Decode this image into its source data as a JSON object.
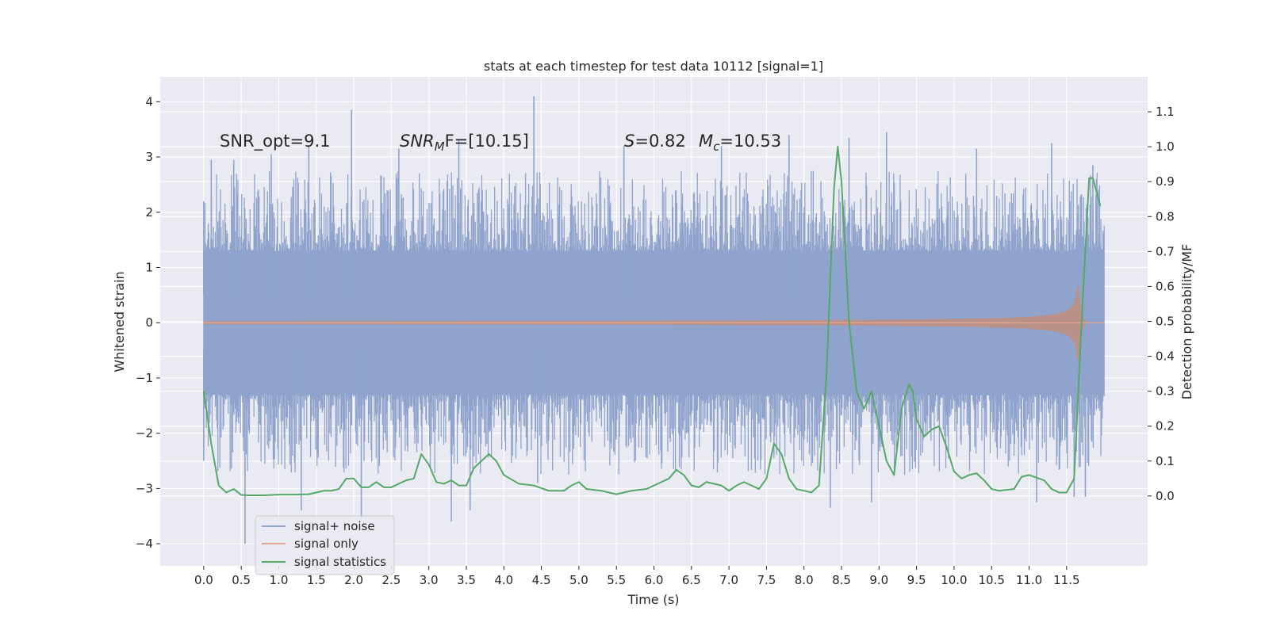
{
  "chart_data": {
    "type": "line",
    "title": "stats at each timestep for test data 10112 [signal=1]",
    "xlabel": "Time (s)",
    "ylabel_left": "Whitened strain",
    "ylabel_right": "Detection probability/MF",
    "xlim": [
      -0.58,
      12.58
    ],
    "ylim_left": [
      -4.4,
      4.45
    ],
    "ylim_right": [
      -0.2,
      1.2
    ],
    "x_ticks": [
      "0.0",
      "0.5",
      "1.0",
      "1.5",
      "2.0",
      "2.5",
      "3.0",
      "3.5",
      "4.0",
      "4.5",
      "5.0",
      "5.5",
      "6.0",
      "6.5",
      "7.0",
      "7.5",
      "8.0",
      "8.5",
      "9.0",
      "9.5",
      "10.0",
      "10.5",
      "11.0",
      "11.5"
    ],
    "y_ticks_left": [
      "4",
      "3",
      "2",
      "1",
      "0",
      "−1",
      "−2",
      "−3",
      "−4"
    ],
    "y_ticks_right": [
      "1.1",
      "1.0",
      "0.9",
      "0.8",
      "0.7",
      "0.6",
      "0.5",
      "0.4",
      "0.3",
      "0.2",
      "0.1",
      "0.0"
    ],
    "grid": true,
    "legend_position": "lower-left",
    "annotations": {
      "snr_opt": "SNR_opt=9.1",
      "snr_mf_sym": "SNR",
      "snr_mf_sub": "M",
      "snr_mf_rest": "F=[10.15]",
      "s_sym": "S",
      "s_rest": "=0.82",
      "mc_sym": "M",
      "mc_sub": "c",
      "mc_rest": "=10.53"
    },
    "series": [
      {
        "name": "signal+ noise",
        "axis": "left",
        "color": "#8fa3cd",
        "duration": 12.0,
        "typical_envelope": [
          -1.3,
          1.3
        ],
        "peaks_positive": [
          [
            0.0,
            2.2
          ],
          [
            0.1,
            2.95
          ],
          [
            0.4,
            2.95
          ],
          [
            0.9,
            3.05
          ],
          [
            1.4,
            3.2
          ],
          [
            1.97,
            3.85
          ],
          [
            2.6,
            3.15
          ],
          [
            3.4,
            3.3
          ],
          [
            4.4,
            4.1
          ],
          [
            5.6,
            3.2
          ],
          [
            6.9,
            3.2
          ],
          [
            7.8,
            3.4
          ],
          [
            8.6,
            3.35
          ],
          [
            9.1,
            3.45
          ],
          [
            10.3,
            3.15
          ],
          [
            11.3,
            3.25
          ],
          [
            11.85,
            2.85
          ]
        ],
        "peaks_negative": [
          [
            0.0,
            -2.5
          ],
          [
            0.55,
            -4.0
          ],
          [
            1.3,
            -3.4
          ],
          [
            2.1,
            -3.55
          ],
          [
            3.3,
            -3.6
          ],
          [
            3.55,
            -3.4
          ],
          [
            4.45,
            -2.9
          ],
          [
            8.35,
            -3.35
          ],
          [
            8.9,
            -3.25
          ],
          [
            11.1,
            -3.25
          ],
          [
            11.6,
            -3.15
          ],
          [
            11.75,
            -3.15
          ]
        ]
      },
      {
        "name": "signal only",
        "axis": "left",
        "color": "#dd8452",
        "duration": 12.0,
        "merger_time": 11.65,
        "peak_amplitude": 0.95
      },
      {
        "name": "signal statistics",
        "axis": "right",
        "color": "#55a868",
        "x": [
          0.0,
          0.1,
          0.2,
          0.3,
          0.4,
          0.5,
          0.6,
          0.8,
          1.0,
          1.2,
          1.4,
          1.6,
          1.7,
          1.8,
          1.9,
          2.0,
          2.1,
          2.2,
          2.3,
          2.4,
          2.5,
          2.6,
          2.7,
          2.8,
          2.9,
          3.0,
          3.1,
          3.2,
          3.3,
          3.4,
          3.5,
          3.6,
          3.7,
          3.8,
          3.9,
          4.0,
          4.2,
          4.4,
          4.6,
          4.8,
          4.9,
          5.0,
          5.1,
          5.3,
          5.5,
          5.7,
          5.9,
          6.1,
          6.2,
          6.3,
          6.4,
          6.5,
          6.6,
          6.7,
          6.9,
          7.0,
          7.1,
          7.2,
          7.3,
          7.4,
          7.5,
          7.6,
          7.7,
          7.8,
          7.9,
          8.1,
          8.2,
          8.3,
          8.4,
          8.45,
          8.5,
          8.6,
          8.7,
          8.8,
          8.9,
          9.0,
          9.1,
          9.2,
          9.3,
          9.4,
          9.45,
          9.5,
          9.6,
          9.7,
          9.8,
          9.9,
          10.0,
          10.1,
          10.2,
          10.3,
          10.4,
          10.5,
          10.6,
          10.8,
          10.9,
          11.0,
          11.2,
          11.3,
          11.4,
          11.5,
          11.6,
          11.7,
          11.8,
          11.85,
          11.95
        ],
        "values": [
          0.3,
          0.15,
          0.03,
          0.01,
          0.02,
          0.003,
          0.002,
          0.002,
          0.004,
          0.004,
          0.005,
          0.015,
          0.015,
          0.02,
          0.05,
          0.05,
          0.025,
          0.025,
          0.04,
          0.025,
          0.025,
          0.035,
          0.045,
          0.05,
          0.12,
          0.09,
          0.04,
          0.035,
          0.045,
          0.03,
          0.03,
          0.08,
          0.1,
          0.12,
          0.1,
          0.06,
          0.035,
          0.03,
          0.015,
          0.015,
          0.03,
          0.04,
          0.02,
          0.015,
          0.005,
          0.015,
          0.02,
          0.04,
          0.05,
          0.075,
          0.06,
          0.03,
          0.025,
          0.04,
          0.03,
          0.015,
          0.03,
          0.04,
          0.03,
          0.02,
          0.05,
          0.15,
          0.12,
          0.05,
          0.02,
          0.01,
          0.03,
          0.35,
          0.88,
          1.0,
          0.9,
          0.5,
          0.3,
          0.25,
          0.3,
          0.2,
          0.1,
          0.06,
          0.25,
          0.32,
          0.3,
          0.22,
          0.17,
          0.19,
          0.2,
          0.14,
          0.07,
          0.05,
          0.06,
          0.065,
          0.045,
          0.02,
          0.015,
          0.02,
          0.055,
          0.06,
          0.045,
          0.02,
          0.01,
          0.01,
          0.05,
          0.5,
          0.91,
          0.91,
          0.83
        ]
      }
    ]
  }
}
